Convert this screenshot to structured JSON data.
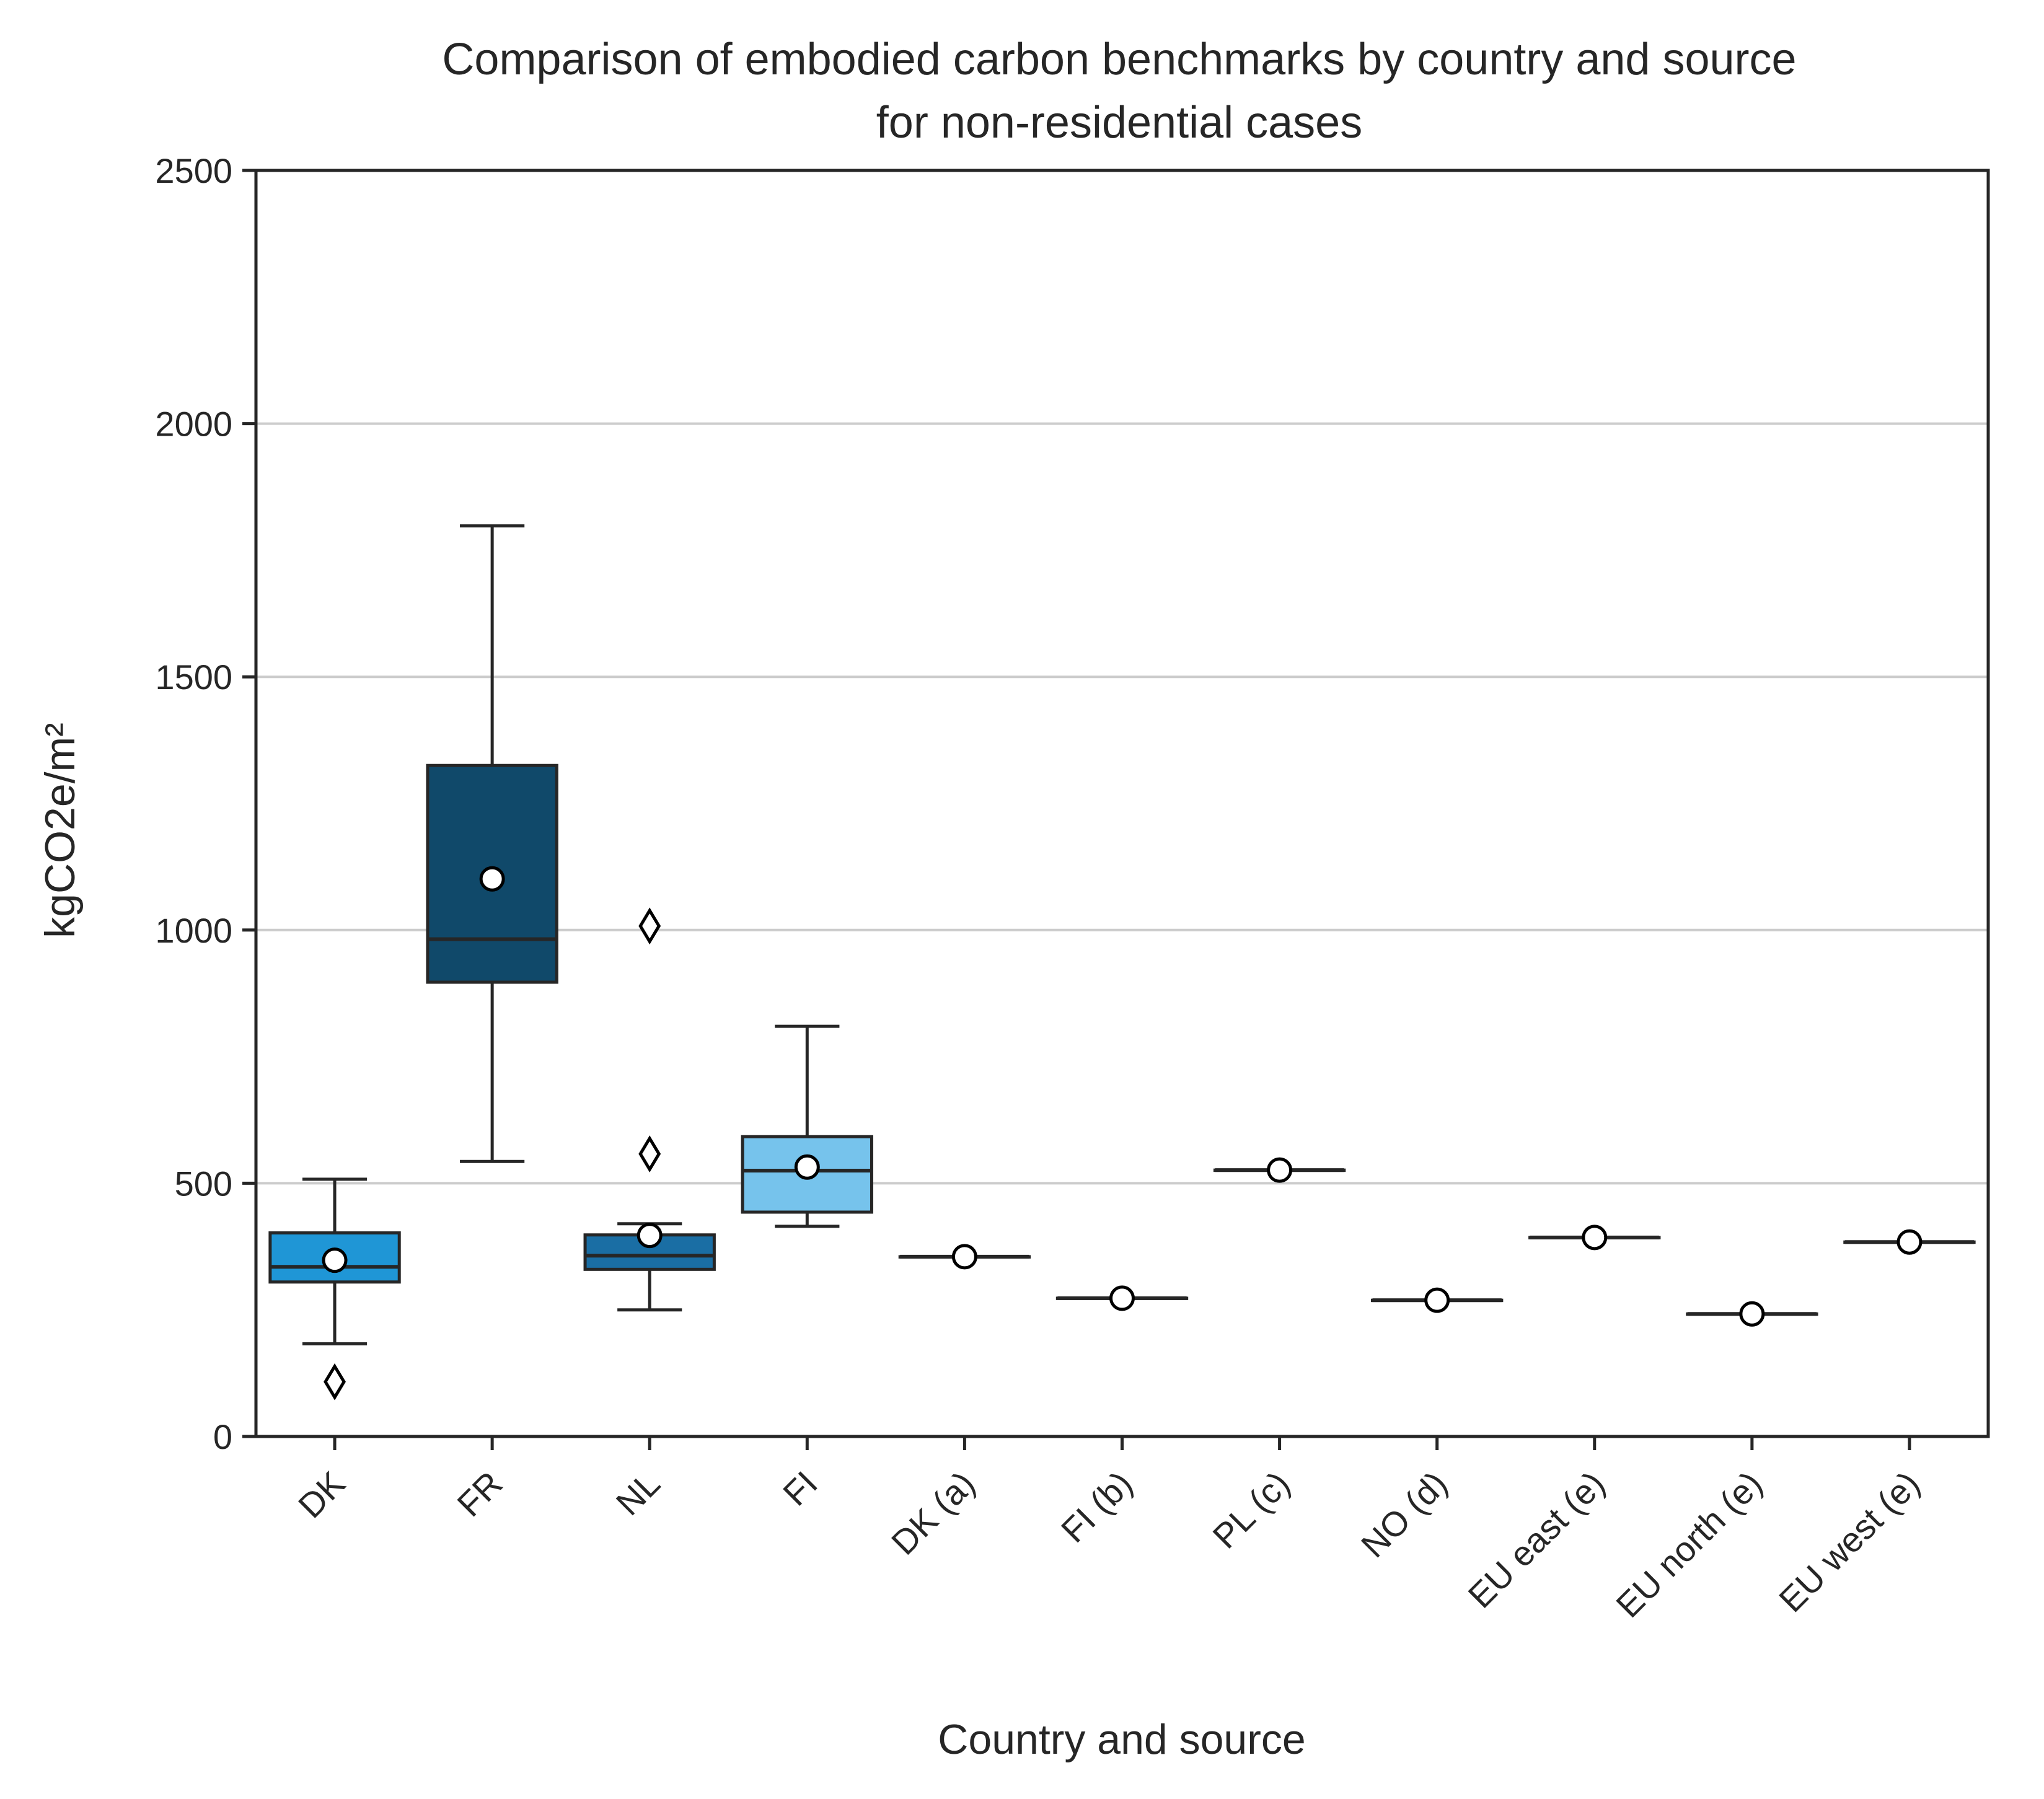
{
  "chart_data": {
    "type": "box",
    "title": "Comparison of embodied carbon benchmarks by country and source\nfor non-residential cases",
    "xlabel": "Country and source",
    "ylabel": "kgCO2e/m²",
    "ylim": [
      0,
      2500
    ],
    "yticks": [
      0,
      500,
      1000,
      1500,
      2000,
      2500
    ],
    "grid": "horizontal",
    "categories": [
      "DK",
      "FR",
      "NL",
      "FI",
      "DK (a)",
      "FI (b)",
      "PL (c)",
      "NO (d)",
      "EU east (e)",
      "EU north (e)",
      "EU west (e)"
    ],
    "boxes": [
      {
        "category": "DK",
        "whisker_low": 183,
        "q1": 305,
        "median": 335,
        "q3": 402,
        "whisker_high": 508,
        "mean": 348,
        "outliers": [
          108
        ],
        "color": "#1f96d6"
      },
      {
        "category": "FR",
        "whisker_low": 543,
        "q1": 897,
        "median": 982,
        "q3": 1325,
        "whisker_high": 1798,
        "mean": 1101,
        "outliers": [],
        "color": "#10496a"
      },
      {
        "category": "NL",
        "whisker_low": 250,
        "q1": 330,
        "median": 357,
        "q3": 398,
        "whisker_high": 420,
        "mean": 397,
        "outliers": [
          558,
          1008
        ],
        "color": "#1a6ea4"
      },
      {
        "category": "FI",
        "whisker_low": 415,
        "q1": 443,
        "median": 525,
        "q3": 592,
        "whisker_high": 810,
        "mean": 532,
        "outliers": [],
        "color": "#76c3ec"
      },
      {
        "category": "DK (a)",
        "whisker_low": 355,
        "q1": 355,
        "median": 355,
        "q3": 355,
        "whisker_high": 355,
        "mean": 355,
        "outliers": [],
        "color": "#1f96d6"
      },
      {
        "category": "FI (b)",
        "whisker_low": 273,
        "q1": 273,
        "median": 273,
        "q3": 273,
        "whisker_high": 273,
        "mean": 273,
        "outliers": [],
        "color": "#76c3ec"
      },
      {
        "category": "PL (c)",
        "whisker_low": 526,
        "q1": 526,
        "median": 526,
        "q3": 526,
        "whisker_high": 526,
        "mean": 526,
        "outliers": [],
        "color": "#1f96d6"
      },
      {
        "category": "NO (d)",
        "whisker_low": 269,
        "q1": 269,
        "median": 269,
        "q3": 269,
        "whisker_high": 269,
        "mean": 269,
        "outliers": [],
        "color": "#1f96d6"
      },
      {
        "category": "EU east (e)",
        "whisker_low": 393,
        "q1": 393,
        "median": 393,
        "q3": 393,
        "whisker_high": 393,
        "mean": 393,
        "outliers": [],
        "color": "#1f96d6"
      },
      {
        "category": "EU north (e)",
        "whisker_low": 242,
        "q1": 242,
        "median": 242,
        "q3": 242,
        "whisker_high": 242,
        "mean": 242,
        "outliers": [],
        "color": "#1f96d6"
      },
      {
        "category": "EU west (e)",
        "whisker_low": 384,
        "q1": 384,
        "median": 384,
        "q3": 384,
        "whisker_high": 384,
        "mean": 384,
        "outliers": [],
        "color": "#1f96d6"
      }
    ]
  },
  "colors": {
    "axis": "#262626",
    "grid": "#cccccc",
    "mean_marker_fill": "#ffffff",
    "mean_marker_edge": "#000000"
  }
}
